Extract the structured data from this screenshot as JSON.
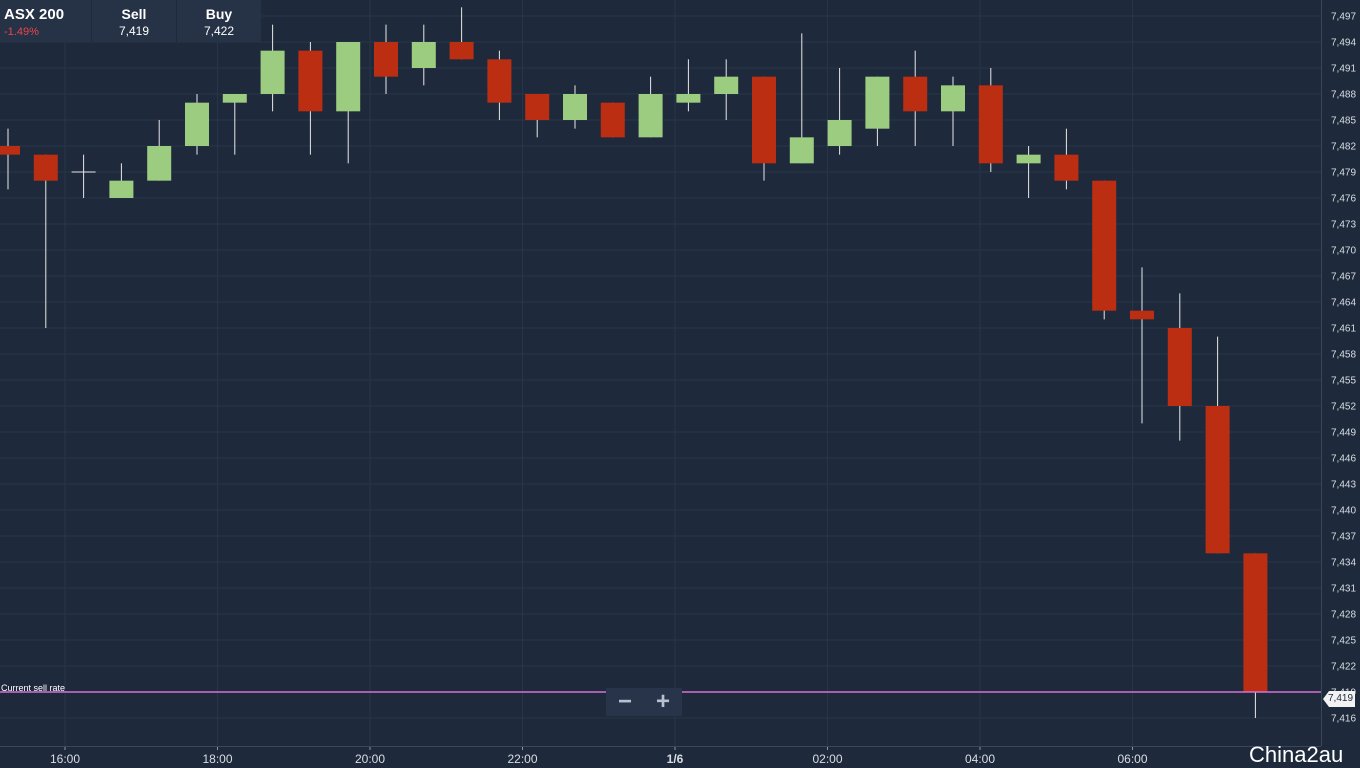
{
  "quote": {
    "instrument": "ASX 200",
    "change": "-1.49%",
    "sell_label": "Sell",
    "sell_value": "7,419",
    "buy_label": "Buy",
    "buy_value": "7,422"
  },
  "current_rate_label": "Current sell rate",
  "current_rate_value": "7,419",
  "zoom": {
    "minus": "−",
    "plus": "+"
  },
  "watermark": "China2au",
  "colors": {
    "background": "#1e2a3b",
    "up": "#9ccc7f",
    "down": "#bb2e12",
    "current_line": "#d670d6",
    "grid": "#27354a"
  },
  "chart_data": {
    "type": "candlestick",
    "x_ticks": [
      "16:00",
      "18:00",
      "20:00",
      "22:00",
      "1/6",
      "02:00",
      "04:00",
      "06:00"
    ],
    "y_ticks": [
      7497,
      7494,
      7491,
      7488,
      7485,
      7482,
      7479,
      7476,
      7473,
      7470,
      7467,
      7464,
      7461,
      7458,
      7455,
      7452,
      7449,
      7446,
      7443,
      7440,
      7437,
      7434,
      7431,
      7428,
      7425,
      7422,
      7419,
      7416
    ],
    "ylim": [
      7414,
      7498.5
    ],
    "current_sell": 7419,
    "candles": [
      {
        "o": 7482,
        "c": 7481,
        "h": 7484,
        "l": 7477
      },
      {
        "o": 7481,
        "c": 7478,
        "h": 7481,
        "l": 7461
      },
      {
        "o": 7479,
        "c": 7479,
        "h": 7481,
        "l": 7476
      },
      {
        "o": 7476,
        "c": 7478,
        "h": 7480,
        "l": 7476
      },
      {
        "o": 7478,
        "c": 7482,
        "h": 7485,
        "l": 7478
      },
      {
        "o": 7482,
        "c": 7487,
        "h": 7488,
        "l": 7481
      },
      {
        "o": 7487,
        "c": 7488,
        "h": 7488,
        "l": 7481
      },
      {
        "o": 7488,
        "c": 7493,
        "h": 7496,
        "l": 7486
      },
      {
        "o": 7493,
        "c": 7486,
        "h": 7494,
        "l": 7481
      },
      {
        "o": 7486,
        "c": 7494,
        "h": 7494,
        "l": 7480
      },
      {
        "o": 7494,
        "c": 7490,
        "h": 7496,
        "l": 7488
      },
      {
        "o": 7491,
        "c": 7494,
        "h": 7496,
        "l": 7489
      },
      {
        "o": 7494,
        "c": 7492,
        "h": 7498,
        "l": 7492
      },
      {
        "o": 7492,
        "c": 7487,
        "h": 7493,
        "l": 7485
      },
      {
        "o": 7488,
        "c": 7485,
        "h": 7488,
        "l": 7483
      },
      {
        "o": 7485,
        "c": 7488,
        "h": 7489,
        "l": 7484
      },
      {
        "o": 7487,
        "c": 7483,
        "h": 7487,
        "l": 7483
      },
      {
        "o": 7483,
        "c": 7488,
        "h": 7490,
        "l": 7483
      },
      {
        "o": 7487,
        "c": 7488,
        "h": 7492,
        "l": 7486
      },
      {
        "o": 7488,
        "c": 7490,
        "h": 7492,
        "l": 7485
      },
      {
        "o": 7490,
        "c": 7480,
        "h": 7490,
        "l": 7478
      },
      {
        "o": 7480,
        "c": 7483,
        "h": 7495,
        "l": 7480
      },
      {
        "o": 7482,
        "c": 7485,
        "h": 7491,
        "l": 7481
      },
      {
        "o": 7484,
        "c": 7490,
        "h": 7490,
        "l": 7482
      },
      {
        "o": 7490,
        "c": 7486,
        "h": 7493,
        "l": 7482
      },
      {
        "o": 7486,
        "c": 7489,
        "h": 7490,
        "l": 7482
      },
      {
        "o": 7489,
        "c": 7480,
        "h": 7491,
        "l": 7479
      },
      {
        "o": 7480,
        "c": 7481,
        "h": 7482,
        "l": 7476
      },
      {
        "o": 7481,
        "c": 7478,
        "h": 7484,
        "l": 7477
      },
      {
        "o": 7478,
        "c": 7463,
        "h": 7478,
        "l": 7462
      },
      {
        "o": 7463,
        "c": 7462,
        "h": 7468,
        "l": 7450
      },
      {
        "o": 7461,
        "c": 7452,
        "h": 7465,
        "l": 7448
      },
      {
        "o": 7452,
        "c": 7435,
        "h": 7460,
        "l": 7435
      },
      {
        "o": 7435,
        "c": 7419,
        "h": 7435,
        "l": 7416
      }
    ]
  }
}
